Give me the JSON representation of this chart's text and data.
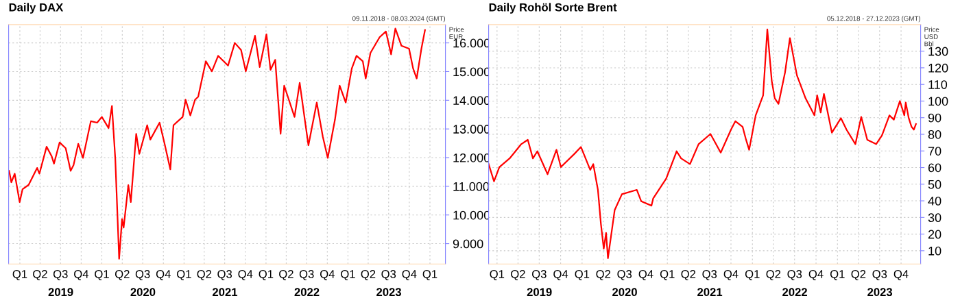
{
  "chart_data": [
    {
      "type": "line",
      "title": "Daily DAX",
      "subtitle": "09.11.2018 - 08.03.2024 (GMT)",
      "ylabel": "Price\nEUR",
      "grid": true,
      "marker": "none",
      "line_style": "solid",
      "x2lim": [
        "2018-11-12",
        "2024-03-10"
      ],
      "xlim": [
        "2018-11-12",
        "2024-03-10"
      ],
      "ylim": [
        8290,
        16640
      ],
      "yticks": [
        {
          "value": 9000,
          "label": "9.000"
        },
        {
          "value": 10000,
          "label": "10.000"
        },
        {
          "value": 11000,
          "label": "11.000"
        },
        {
          "value": 12000,
          "label": "12.000"
        },
        {
          "value": 13000,
          "label": "13.000"
        },
        {
          "value": 14000,
          "label": "14.000"
        },
        {
          "value": 15000,
          "label": "15.000"
        },
        {
          "value": 16000,
          "label": "16.000"
        }
      ],
      "xticks": [
        {
          "value": "2019-01-01",
          "label": "Q1"
        },
        {
          "value": "2019-04-01",
          "label": "Q2"
        },
        {
          "value": "2019-07-01",
          "label": "Q3"
        },
        {
          "value": "2019-10-01",
          "label": "Q4"
        },
        {
          "value": "2020-01-01",
          "label": "Q1"
        },
        {
          "value": "2020-04-01",
          "label": "Q2"
        },
        {
          "value": "2020-07-01",
          "label": "Q3"
        },
        {
          "value": "2020-10-01",
          "label": "Q4"
        },
        {
          "value": "2021-01-01",
          "label": "Q1"
        },
        {
          "value": "2021-04-01",
          "label": "Q2"
        },
        {
          "value": "2021-07-01",
          "label": "Q3"
        },
        {
          "value": "2021-10-01",
          "label": "Q4"
        },
        {
          "value": "2022-01-01",
          "label": "Q1"
        },
        {
          "value": "2022-04-01",
          "label": "Q2"
        },
        {
          "value": "2022-07-01",
          "label": "Q3"
        },
        {
          "value": "2022-10-01",
          "label": "Q4"
        },
        {
          "value": "2023-01-01",
          "label": "Q1"
        },
        {
          "value": "2023-04-01",
          "label": "Q2"
        },
        {
          "value": "2023-07-01",
          "label": "Q3"
        },
        {
          "value": "2023-10-01",
          "label": "Q4"
        },
        {
          "value": "2024-01-01",
          "label": "Q1"
        }
      ],
      "x2ticks": [
        {
          "value": "2019-07-02",
          "label": "2019"
        },
        {
          "value": "2020-07-02",
          "label": "2020"
        },
        {
          "value": "2021-07-02",
          "label": "2021"
        },
        {
          "value": "2022-07-02",
          "label": "2022"
        },
        {
          "value": "2023-07-02",
          "label": "2023"
        }
      ],
      "series": [
        {
          "color": "#ff0000",
          "x": [
            "2018-11-14",
            "2018-11-24",
            "2018-12-09",
            "2018-12-31",
            "2019-01-13",
            "2019-02-09",
            "2019-03-19",
            "2019-03-29",
            "2019-04-30",
            "2019-05-23",
            "2019-06-02",
            "2019-06-27",
            "2019-07-24",
            "2019-08-15",
            "2019-08-28",
            "2019-09-18",
            "2019-10-09",
            "2019-11-13",
            "2019-12-11",
            "2020-01-01",
            "2020-01-31",
            "2020-02-15",
            "2020-03-01",
            "2020-03-18",
            "2020-03-31",
            "2020-04-07",
            "2020-04-28",
            "2020-05-09",
            "2020-06-02",
            "2020-06-16",
            "2020-07-21",
            "2020-08-04",
            "2020-09-14",
            "2020-10-05",
            "2020-11-01",
            "2020-11-15",
            "2020-12-26",
            "2021-01-08",
            "2021-01-29",
            "2021-02-19",
            "2021-03-05",
            "2021-04-08",
            "2021-05-05",
            "2021-06-02",
            "2021-07-16",
            "2021-08-15",
            "2021-09-12",
            "2021-10-03",
            "2021-11-13",
            "2021-12-04",
            "2022-01-03",
            "2022-01-21",
            "2022-02-11",
            "2022-03-07",
            "2022-03-23",
            "2022-05-08",
            "2022-05-31",
            "2022-06-28",
            "2022-07-09",
            "2022-08-15",
            "2022-09-11",
            "2022-10-03",
            "2022-11-04",
            "2022-11-25",
            "2022-12-22",
            "2023-01-18",
            "2023-02-08",
            "2023-03-08",
            "2023-03-21",
            "2023-04-11",
            "2023-05-22",
            "2023-06-19",
            "2023-07-12",
            "2023-07-31",
            "2023-08-27",
            "2023-09-30",
            "2023-10-18",
            "2023-11-03",
            "2023-11-24",
            "2023-12-10"
          ],
          "values": [
            11540,
            11140,
            11440,
            10450,
            10900,
            11050,
            11640,
            11440,
            12380,
            12040,
            11790,
            12530,
            12330,
            11540,
            11740,
            12480,
            11990,
            13270,
            13220,
            13420,
            13030,
            13800,
            11940,
            8470,
            9860,
            9560,
            11040,
            10450,
            12830,
            12130,
            13130,
            12630,
            13220,
            12530,
            11590,
            13130,
            13420,
            14020,
            13470,
            14020,
            14120,
            15360,
            15010,
            15550,
            15210,
            16000,
            15750,
            15010,
            16250,
            15160,
            16300,
            15060,
            15410,
            12830,
            14510,
            13420,
            14610,
            13030,
            12430,
            13920,
            12730,
            11990,
            13320,
            14510,
            13920,
            15110,
            15550,
            15360,
            14760,
            15650,
            16200,
            16400,
            15600,
            16500,
            15900,
            15800,
            15110,
            14760,
            15800,
            16450
          ]
        }
      ]
    },
    {
      "type": "line",
      "title": "Daily Rohöl Sorte Brent",
      "subtitle": "05.12.2018 - 27.12.2023 (GMT)",
      "ylabel": "Price\nUSD\nBbl",
      "grid": true,
      "marker": "none",
      "line_style": "solid",
      "x2lim": [
        "2018-11-26",
        "2023-12-24"
      ],
      "xlim": [
        "2018-11-26",
        "2023-12-24"
      ],
      "ylim": [
        2,
        146
      ],
      "yticks": [
        10,
        20,
        30,
        40,
        50,
        60,
        70,
        80,
        90,
        100,
        110,
        120,
        130
      ],
      "xticks": [
        {
          "value": "2019-01-01",
          "label": "Q1"
        },
        {
          "value": "2019-04-01",
          "label": "Q2"
        },
        {
          "value": "2019-07-01",
          "label": "Q3"
        },
        {
          "value": "2019-10-01",
          "label": "Q4"
        },
        {
          "value": "2020-01-01",
          "label": "Q1"
        },
        {
          "value": "2020-04-01",
          "label": "Q2"
        },
        {
          "value": "2020-07-01",
          "label": "Q3"
        },
        {
          "value": "2020-10-01",
          "label": "Q4"
        },
        {
          "value": "2021-01-01",
          "label": "Q1"
        },
        {
          "value": "2021-04-01",
          "label": "Q2"
        },
        {
          "value": "2021-07-01",
          "label": "Q3"
        },
        {
          "value": "2021-10-01",
          "label": "Q4"
        },
        {
          "value": "2022-01-01",
          "label": "Q1"
        },
        {
          "value": "2022-04-01",
          "label": "Q2"
        },
        {
          "value": "2022-07-01",
          "label": "Q3"
        },
        {
          "value": "2022-10-01",
          "label": "Q4"
        },
        {
          "value": "2023-01-01",
          "label": "Q1"
        },
        {
          "value": "2023-04-01",
          "label": "Q2"
        },
        {
          "value": "2023-07-01",
          "label": "Q3"
        },
        {
          "value": "2023-10-01",
          "label": "Q4"
        }
      ],
      "x2ticks": [
        {
          "value": "2019-07-02",
          "label": "2019"
        },
        {
          "value": "2020-07-02",
          "label": "2020"
        },
        {
          "value": "2021-07-02",
          "label": "2021"
        },
        {
          "value": "2022-07-02",
          "label": "2022"
        },
        {
          "value": "2023-07-02",
          "label": "2023"
        }
      ],
      "series": [
        {
          "color": "#ff0000",
          "x": [
            "2018-11-26",
            "2018-12-19",
            "2019-01-11",
            "2019-02-24",
            "2019-04-15",
            "2019-05-13",
            "2019-06-04",
            "2019-06-23",
            "2019-08-06",
            "2019-09-13",
            "2019-10-02",
            "2019-11-28",
            "2019-12-27",
            "2020-02-05",
            "2020-02-18",
            "2020-03-09",
            "2020-03-22",
            "2020-04-03",
            "2020-04-13",
            "2020-04-21",
            "2020-05-20",
            "2020-06-20",
            "2020-08-23",
            "2020-09-11",
            "2020-10-25",
            "2020-11-01",
            "2020-12-27",
            "2021-02-10",
            "2021-03-01",
            "2021-04-08",
            "2021-05-15",
            "2021-07-05",
            "2021-08-18",
            "2021-10-01",
            "2021-10-20",
            "2021-11-20",
            "2021-12-03",
            "2021-12-18",
            "2022-01-15",
            "2022-02-16",
            "2022-03-06",
            "2022-03-25",
            "2022-04-07",
            "2022-04-23",
            "2022-05-21",
            "2022-06-11",
            "2022-07-11",
            "2022-08-17",
            "2022-09-24",
            "2022-10-06",
            "2022-10-21",
            "2022-11-04",
            "2022-12-08",
            "2023-01-16",
            "2023-02-09",
            "2023-03-19",
            "2023-04-13",
            "2023-05-09",
            "2023-06-16",
            "2023-07-11",
            "2023-08-12",
            "2023-08-31",
            "2023-09-26",
            "2023-10-15",
            "2023-10-21",
            "2023-11-03",
            "2023-11-15",
            "2023-11-25",
            "2023-12-04"
          ],
          "values": [
            62.1,
            51.7,
            60.3,
            65.5,
            74.1,
            76.7,
            65.5,
            69.8,
            56.0,
            70.7,
            60.3,
            68.1,
            72.4,
            58.6,
            62.1,
            46.6,
            25.9,
            11.2,
            20.7,
            5.5,
            34.5,
            44.0,
            46.6,
            39.7,
            37.1,
            41.4,
            53.4,
            69.8,
            65.5,
            62.1,
            74.1,
            80.2,
            69.0,
            82.8,
            87.9,
            84.5,
            77.6,
            70.7,
            91.4,
            103.4,
            143.1,
            112.1,
            101.7,
            98.3,
            117.2,
            137.9,
            115.5,
            101.7,
            91.4,
            103.4,
            93.1,
            104.3,
            81.0,
            89.7,
            82.8,
            74.1,
            90.5,
            76.7,
            74.1,
            79.3,
            91.4,
            88.8,
            100.0,
            91.4,
            99.1,
            89.7,
            84.5,
            82.8,
            86.2
          ]
        }
      ]
    }
  ]
}
